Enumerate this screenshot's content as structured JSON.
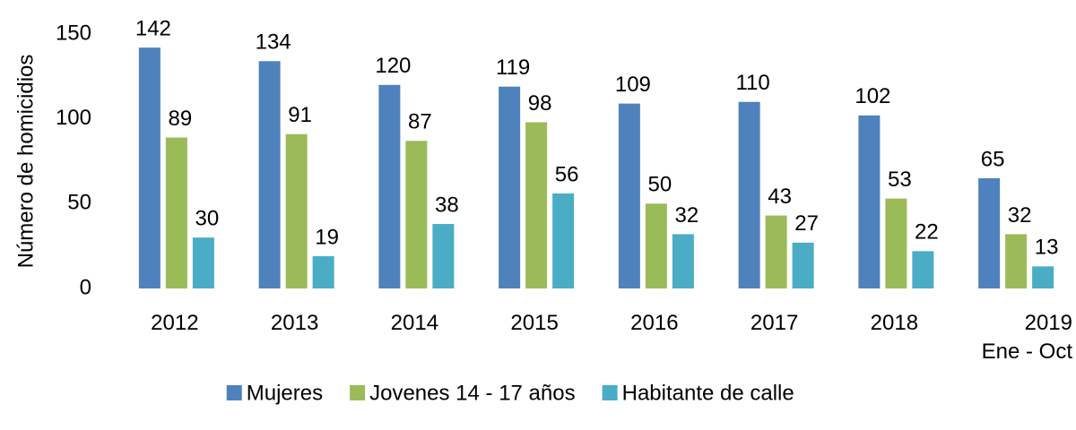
{
  "chart_data": {
    "type": "bar",
    "y_label": "Número de homicidios",
    "categories": [
      "2012",
      "2013",
      "2014",
      "2015",
      "2016",
      "2017",
      "2018",
      "2019\nEne - Oct"
    ],
    "series": [
      {
        "name": "Mujeres",
        "color": "#4f81bd",
        "values": [
          142,
          134,
          120,
          119,
          109,
          110,
          102,
          65
        ]
      },
      {
        "name": "Jovenes 14 - 17 años",
        "color": "#9bbb59",
        "values": [
          89,
          91,
          87,
          98,
          50,
          43,
          53,
          32
        ]
      },
      {
        "name": "Habitante de calle",
        "color": "#4bacc6",
        "values": [
          30,
          19,
          38,
          56,
          32,
          27,
          22,
          13
        ]
      }
    ],
    "ylim": [
      0,
      150
    ],
    "yticks": [
      0,
      50,
      100,
      150
    ],
    "grid": false,
    "legend": "bottom"
  }
}
